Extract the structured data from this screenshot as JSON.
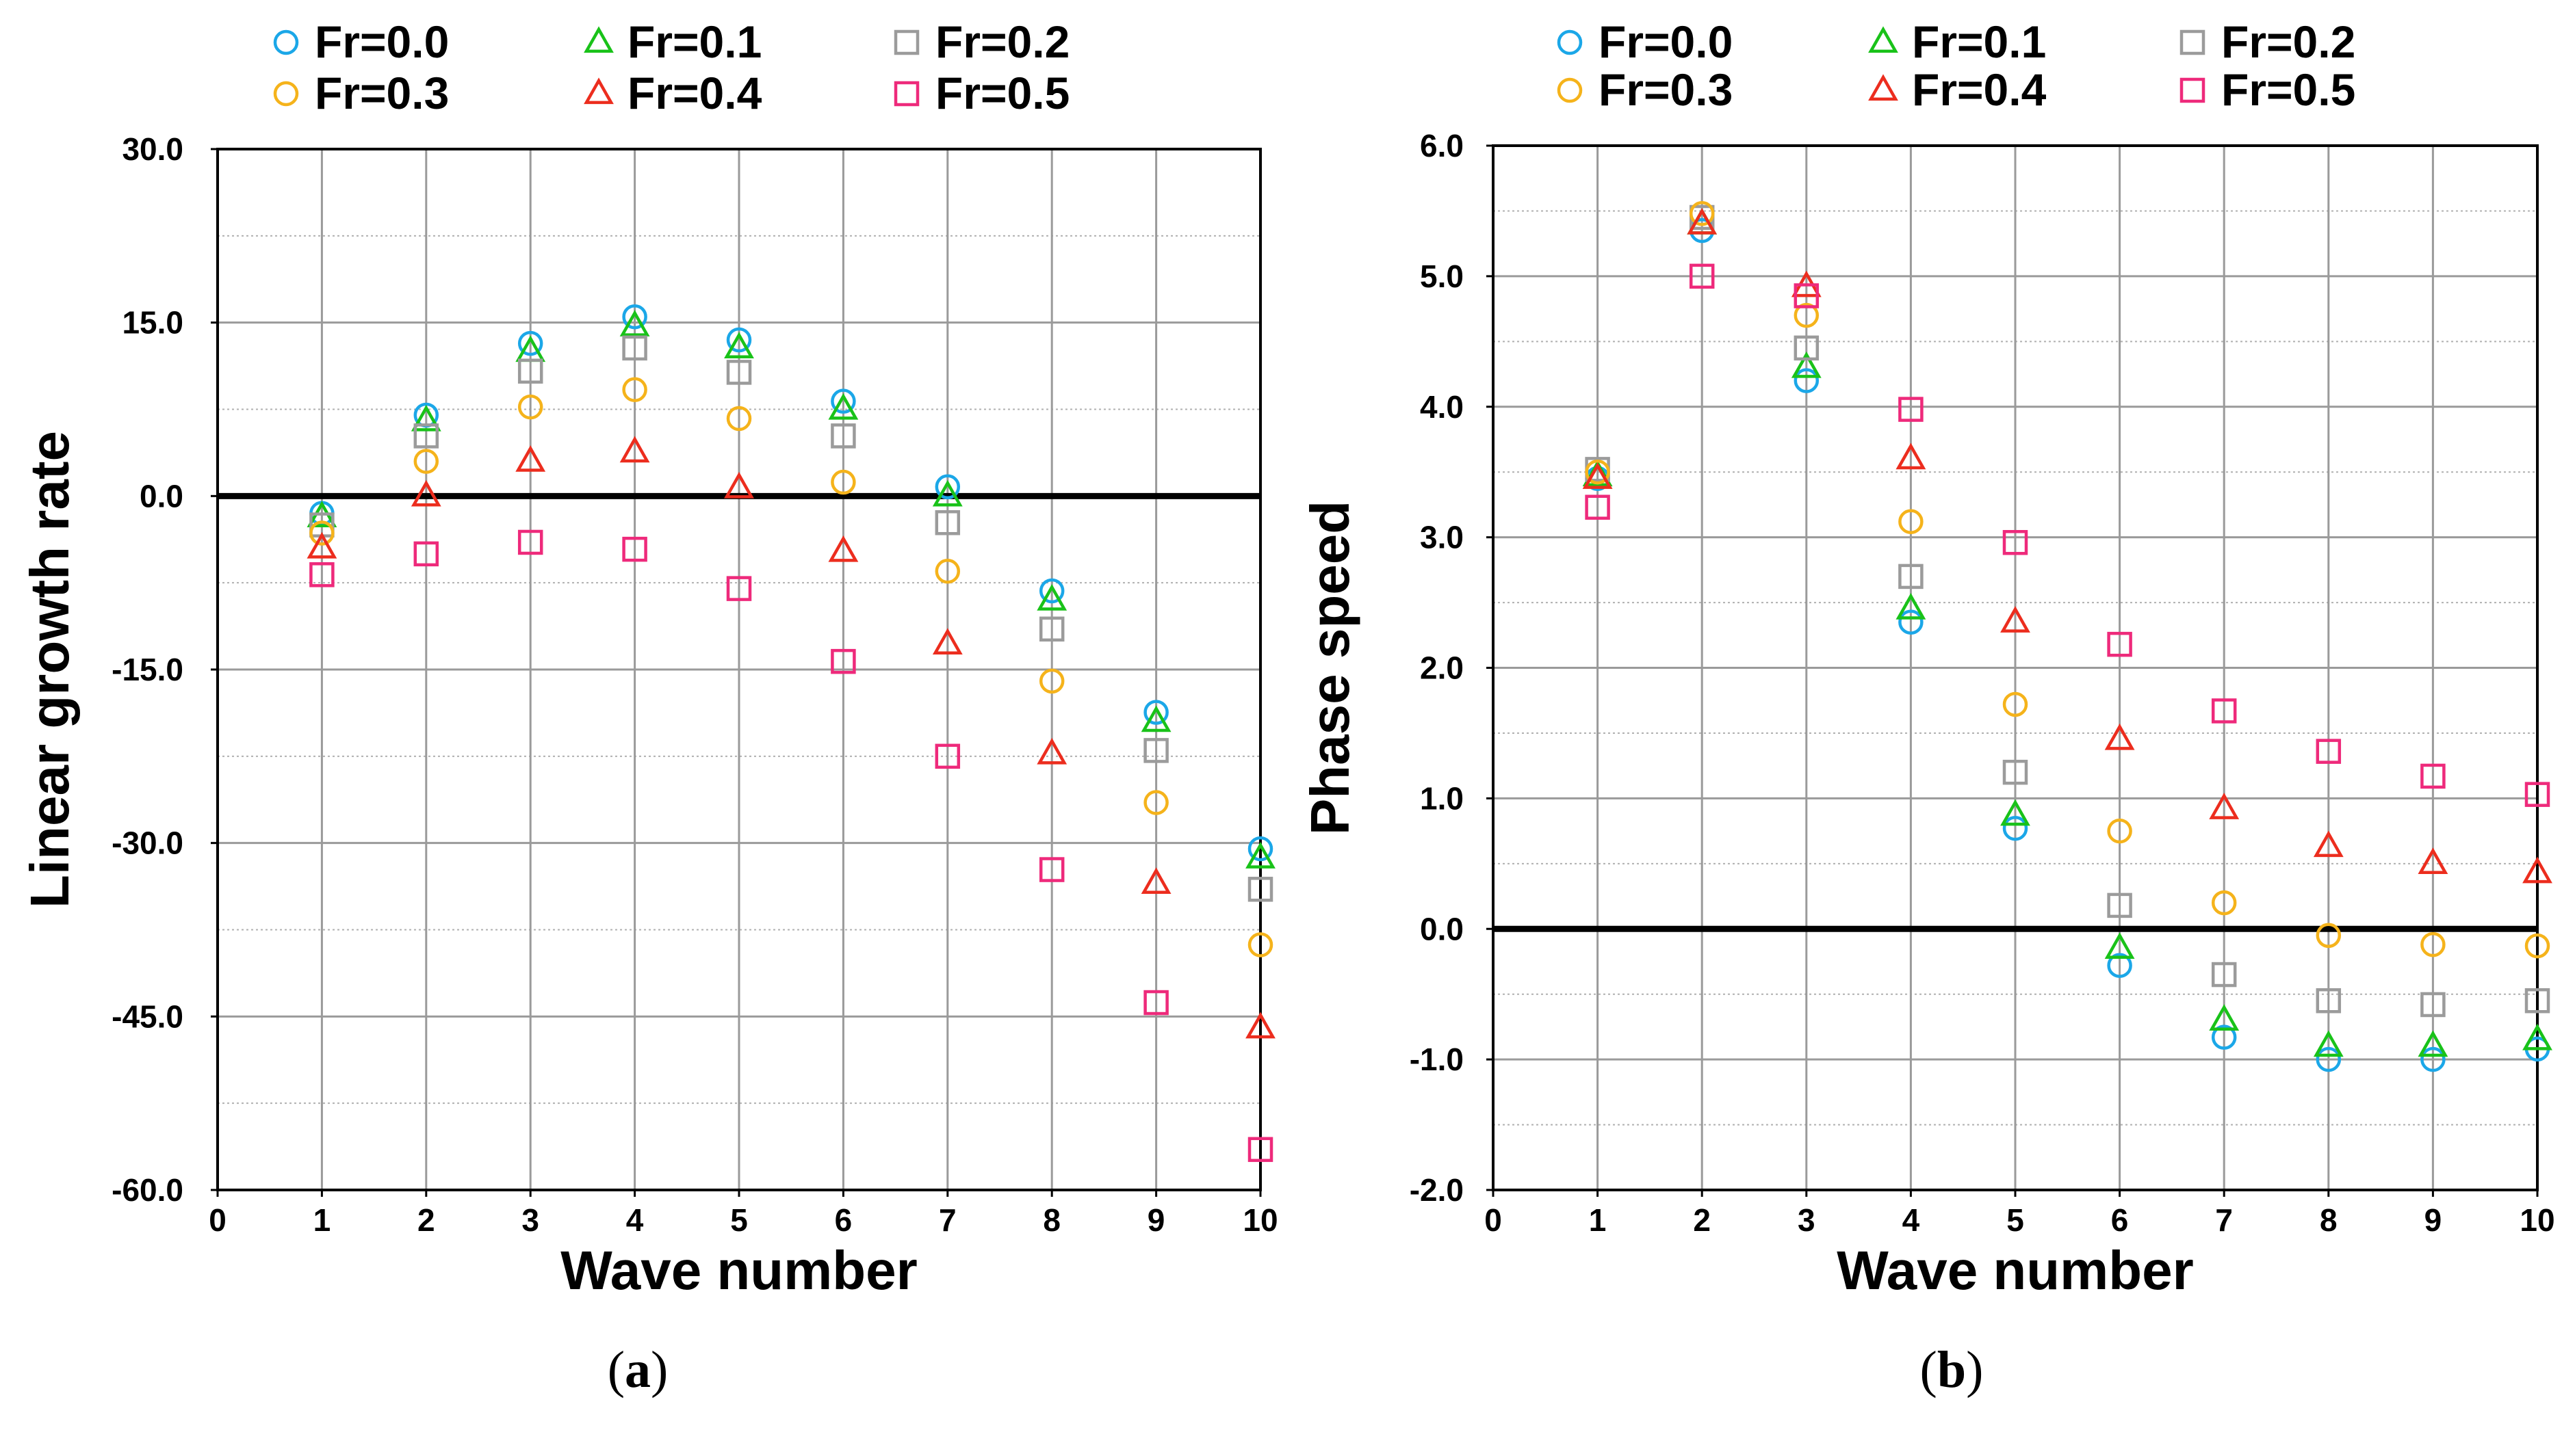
{
  "series_styles": [
    {
      "name": "Fr=0.0",
      "marker": "circle",
      "color": "#1BA7E8"
    },
    {
      "name": "Fr=0.1",
      "marker": "triangle",
      "color": "#19C219"
    },
    {
      "name": "Fr=0.2",
      "marker": "square",
      "color": "#9B9B9B"
    },
    {
      "name": "Fr=0.3",
      "marker": "circle",
      "color": "#F5B31B"
    },
    {
      "name": "Fr=0.4",
      "marker": "triangle",
      "color": "#EC2D1E"
    },
    {
      "name": "Fr=0.5",
      "marker": "square",
      "color": "#EE2A7B"
    }
  ],
  "captions": [
    {
      "open": "(",
      "letter": "a",
      "close": ")"
    },
    {
      "open": "(",
      "letter": "b",
      "close": ")"
    }
  ],
  "chart_data": [
    {
      "type": "scatter",
      "title": "",
      "xlabel": "Wave number",
      "ylabel": "Linear growth rate",
      "xlim": [
        0,
        10
      ],
      "ylim": [
        -60,
        30
      ],
      "xticks": [
        "0",
        "1",
        "2",
        "3",
        "4",
        "5",
        "6",
        "7",
        "8",
        "9",
        "10"
      ],
      "yticks": [
        "30.0",
        "15.0",
        "0.0",
        "-15.0",
        "-30.0",
        "-45.0",
        "-60.0"
      ],
      "ytick_values": [
        30,
        15,
        0,
        -15,
        -30,
        -45,
        -60
      ],
      "minor_y_step": 7.5,
      "grid": true,
      "zero_line": true,
      "legend": "top",
      "x": [
        1,
        2,
        3,
        4,
        5,
        6,
        7,
        8,
        9,
        10
      ],
      "series": [
        {
          "name": "Fr=0.0",
          "values": [
            -1.5,
            7.0,
            13.2,
            15.5,
            13.5,
            8.2,
            0.8,
            -8.2,
            -18.7,
            -30.5
          ]
        },
        {
          "name": "Fr=0.1",
          "values": [
            -1.8,
            6.5,
            12.5,
            14.7,
            12.8,
            7.5,
            0.0,
            -9.0,
            -19.5,
            -31.3
          ]
        },
        {
          "name": "Fr=0.2",
          "values": [
            -2.5,
            5.2,
            10.8,
            12.8,
            10.7,
            5.2,
            -2.3,
            -11.5,
            -22.0,
            -34.0
          ]
        },
        {
          "name": "Fr=0.3",
          "values": [
            -3.2,
            3.0,
            7.7,
            9.2,
            6.7,
            1.2,
            -6.5,
            -16.0,
            -26.5,
            -38.8
          ]
        },
        {
          "name": "Fr=0.4",
          "values": [
            -4.5,
            0.0,
            3.0,
            3.8,
            0.7,
            -4.8,
            -12.8,
            -22.3,
            -33.5,
            -46.0
          ]
        },
        {
          "name": "Fr=0.5",
          "values": [
            -6.8,
            -5.0,
            -4.0,
            -4.6,
            -8.0,
            -14.3,
            -22.5,
            -32.3,
            -43.8,
            -56.5
          ]
        }
      ]
    },
    {
      "type": "scatter",
      "title": "",
      "xlabel": "Wave number",
      "ylabel": "Phase speed",
      "xlim": [
        0,
        10
      ],
      "ylim": [
        -2,
        6
      ],
      "xticks": [
        "0",
        "1",
        "2",
        "3",
        "4",
        "5",
        "6",
        "7",
        "8",
        "9",
        "10"
      ],
      "yticks": [
        "6.0",
        "5.0",
        "4.0",
        "3.0",
        "2.0",
        "1.0",
        "0.0",
        "-1.0",
        "-2.0"
      ],
      "ytick_values": [
        6,
        5,
        4,
        3,
        2,
        1,
        0,
        -1,
        -2
      ],
      "minor_y_step": 0.5,
      "grid": true,
      "zero_line": true,
      "legend": "top",
      "x": [
        1,
        2,
        3,
        4,
        5,
        6,
        7,
        8,
        9,
        10
      ],
      "series": [
        {
          "name": "Fr=0.0",
          "values": [
            3.45,
            5.35,
            4.2,
            2.35,
            0.77,
            -0.28,
            -0.83,
            -1.0,
            -1.0,
            -0.92
          ]
        },
        {
          "name": "Fr=0.1",
          "values": [
            3.47,
            5.4,
            4.3,
            2.45,
            0.87,
            -0.15,
            -0.7,
            -0.9,
            -0.9,
            -0.85
          ]
        },
        {
          "name": "Fr=0.2",
          "values": [
            3.52,
            5.45,
            4.45,
            2.7,
            1.2,
            0.18,
            -0.35,
            -0.55,
            -0.58,
            -0.55
          ]
        },
        {
          "name": "Fr=0.3",
          "values": [
            3.5,
            5.48,
            4.7,
            3.12,
            1.72,
            0.75,
            0.2,
            -0.05,
            -0.12,
            -0.13
          ]
        },
        {
          "name": "Fr=0.4",
          "values": [
            3.45,
            5.4,
            4.92,
            3.6,
            2.35,
            1.45,
            0.92,
            0.63,
            0.5,
            0.43
          ]
        },
        {
          "name": "Fr=0.5",
          "values": [
            3.23,
            5.0,
            4.85,
            3.98,
            2.96,
            2.18,
            1.67,
            1.36,
            1.17,
            1.03
          ]
        }
      ]
    }
  ]
}
